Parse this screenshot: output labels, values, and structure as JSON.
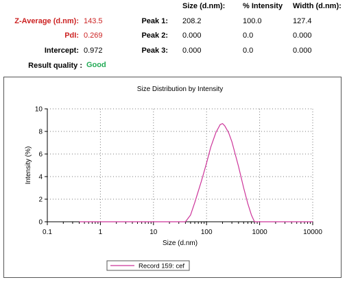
{
  "summary": {
    "headers": {
      "size": "Size (d.nm):",
      "intensity": "% Intensity",
      "width": "Width (d.nm):"
    },
    "zavg": {
      "label": "Z-Average (d.nm):",
      "value": "143.5"
    },
    "pdi": {
      "label": "PdI:",
      "value": "0.269"
    },
    "intercept": {
      "label": "Intercept:",
      "value": "0.972"
    },
    "quality": {
      "label": "Result quality :",
      "value": "Good"
    },
    "peaks": [
      {
        "label": "Peak 1:",
        "size": "208.2",
        "intensity": "100.0",
        "width": "127.4"
      },
      {
        "label": "Peak 2:",
        "size": "0.000",
        "intensity": "0.0",
        "width": "0.000"
      },
      {
        "label": "Peak 3:",
        "size": "0.000",
        "intensity": "0.0",
        "width": "0.000"
      }
    ],
    "colors": {
      "red_label": "#cc2222",
      "good": "#22aa55"
    }
  },
  "chart_data": {
    "type": "line",
    "title": "Size Distribution by Intensity",
    "xlabel": "Size (d.nm)",
    "ylabel": "Intensity (%)",
    "xscale": "log",
    "xlim": [
      0.1,
      10000
    ],
    "ylim": [
      0,
      10
    ],
    "xticks": [
      "0.1",
      "1",
      "10",
      "100",
      "1000",
      "10000"
    ],
    "yticks": [
      "0",
      "2",
      "4",
      "6",
      "8",
      "10"
    ],
    "grid": true,
    "legend_position": "bottom",
    "series": [
      {
        "name": "Record 159: cef",
        "color": "#cc3399",
        "x": [
          0.4,
          5,
          30,
          40,
          50,
          60,
          80,
          100,
          120,
          150,
          180,
          200,
          220,
          260,
          300,
          400,
          500,
          600,
          700,
          800,
          1000,
          5000,
          10000
        ],
        "y": [
          0,
          0,
          0,
          0,
          0.6,
          1.7,
          3.6,
          5.2,
          6.6,
          7.9,
          8.6,
          8.7,
          8.5,
          7.9,
          7.1,
          4.9,
          3.0,
          1.6,
          0.6,
          0,
          0,
          0,
          0
        ]
      }
    ]
  }
}
